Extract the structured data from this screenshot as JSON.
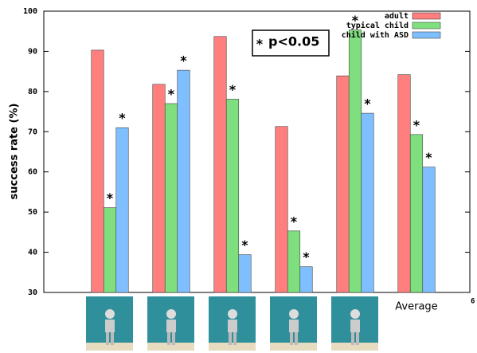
{
  "chart_data": {
    "type": "bar",
    "y_label": "success rate (%)",
    "categories": [
      null,
      null,
      null,
      null,
      null,
      "Average"
    ],
    "x_end_label": "6",
    "ylim": [
      30,
      100
    ],
    "yticks": [
      30,
      40,
      50,
      60,
      70,
      80,
      90,
      100
    ],
    "significance_marker": "*",
    "significance_note": "p<0.05",
    "series": [
      {
        "name": "adult",
        "color": "#ff7f7f",
        "values": [
          90.3,
          81.8,
          93.7,
          71.3,
          83.9,
          84.2
        ],
        "significant": [
          false,
          false,
          false,
          false,
          false,
          false
        ]
      },
      {
        "name": "typical child",
        "color": "#7fdf7f",
        "values": [
          51.1,
          77.0,
          78.1,
          45.3,
          95.3,
          69.3
        ],
        "significant": [
          true,
          true,
          true,
          true,
          true,
          true
        ]
      },
      {
        "name": "child with ASD",
        "color": "#7fbfff",
        "values": [
          71.0,
          85.3,
          39.4,
          36.4,
          74.6,
          61.2
        ],
        "significant": [
          true,
          true,
          true,
          true,
          true,
          true
        ]
      }
    ]
  }
}
